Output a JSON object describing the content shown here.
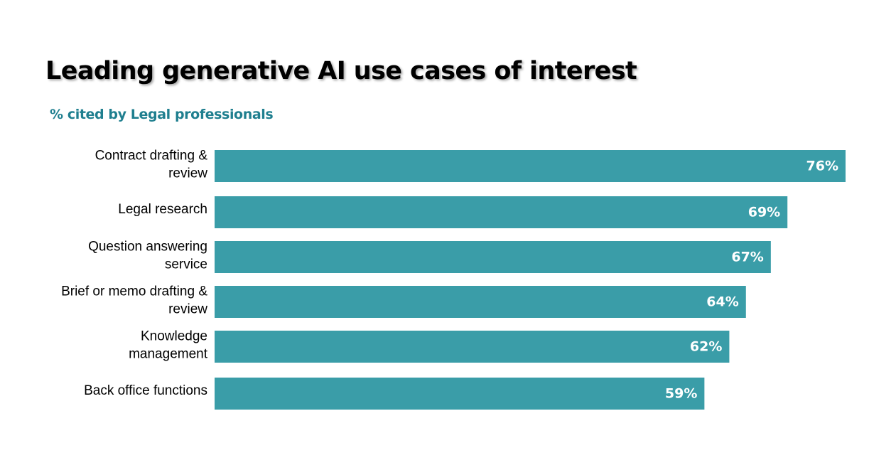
{
  "colors": {
    "bar": "#3a9da8",
    "subtitle": "#1f7f8f",
    "label": "#000000",
    "value_text": "#ffffff"
  },
  "chart_data": {
    "type": "bar",
    "orientation": "horizontal",
    "title": "Leading generative AI use cases of interest",
    "subtitle": "% cited by Legal professionals",
    "categories": [
      [
        "Contract drafting &",
        "review"
      ],
      [
        "Legal research"
      ],
      [
        "Question answering",
        "service"
      ],
      [
        "Brief or memo drafting &",
        "review"
      ],
      [
        "Knowledge",
        "management"
      ],
      [
        "Back office functions"
      ]
    ],
    "values": [
      76,
      69,
      67,
      64,
      62,
      59
    ],
    "value_labels": [
      "76%",
      "69%",
      "67%",
      "64%",
      "62%",
      "59%"
    ],
    "unit": "%",
    "xlim": [
      0,
      76
    ],
    "grid": false,
    "legend": "none"
  }
}
